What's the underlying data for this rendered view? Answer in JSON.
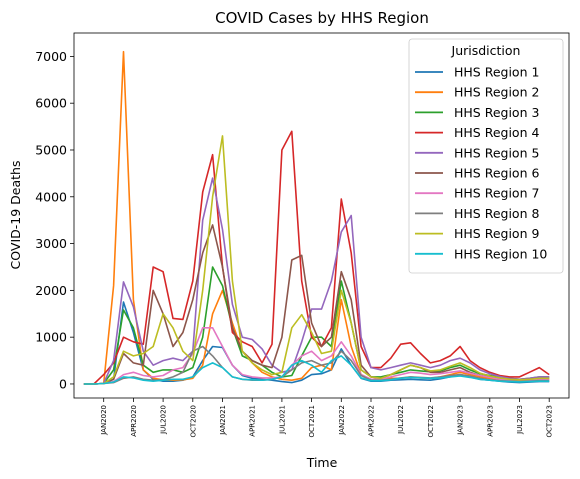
{
  "chart_data": {
    "type": "line",
    "title": "COVID Cases by HHS Region",
    "xlabel": "Time",
    "ylabel": "COVID-19 Deaths",
    "ylim": [
      -300,
      7500
    ],
    "yticks": [
      0,
      1000,
      2000,
      3000,
      4000,
      5000,
      6000,
      7000
    ],
    "x_range": [
      "2019-10",
      "2023-12"
    ],
    "x": [
      "2019-11",
      "2019-12",
      "2020-01",
      "2020-02",
      "2020-03",
      "2020-04",
      "2020-05",
      "2020-06",
      "2020-07",
      "2020-08",
      "2020-09",
      "2020-10",
      "2020-11",
      "2020-12",
      "2021-01",
      "2021-02",
      "2021-03",
      "2021-04",
      "2021-05",
      "2021-06",
      "2021-07",
      "2021-08",
      "2021-09",
      "2021-10",
      "2021-11",
      "2021-12",
      "2022-01",
      "2022-02",
      "2022-03",
      "2022-04",
      "2022-05",
      "2022-06",
      "2022-07",
      "2022-08",
      "2022-09",
      "2022-10",
      "2022-11",
      "2022-12",
      "2023-01",
      "2023-02",
      "2023-03",
      "2023-04",
      "2023-05",
      "2023-06",
      "2023-07",
      "2023-08",
      "2023-09",
      "2023-10"
    ],
    "xticks": [
      {
        "date": "2020-01",
        "label": "JAN2020"
      },
      {
        "date": "2020-04",
        "label": "APR2020"
      },
      {
        "date": "2020-07",
        "label": "JUL2020"
      },
      {
        "date": "2020-10",
        "label": "OCT2020"
      },
      {
        "date": "2021-01",
        "label": "JAN2021"
      },
      {
        "date": "2021-04",
        "label": "APR2021"
      },
      {
        "date": "2021-07",
        "label": "JUL2021"
      },
      {
        "date": "2021-10",
        "label": "OCT2021"
      },
      {
        "date": "2022-01",
        "label": "JAN2022"
      },
      {
        "date": "2022-04",
        "label": "APR2022"
      },
      {
        "date": "2022-07",
        "label": "JUL2022"
      },
      {
        "date": "2022-10",
        "label": "OCT2022"
      },
      {
        "date": "2023-01",
        "label": "JAN2023"
      },
      {
        "date": "2023-04",
        "label": "APR2023"
      },
      {
        "date": "2023-07",
        "label": "JUL2023"
      },
      {
        "date": "2023-10",
        "label": "OCT2023"
      }
    ],
    "legend": {
      "title": "Jurisdiction",
      "placement": "upper-right"
    },
    "grid": false,
    "series": [
      {
        "name": "HHS Region 1",
        "color": "#1f77b4",
        "values": [
          0,
          0,
          10,
          100,
          1750,
          1100,
          300,
          100,
          60,
          60,
          80,
          150,
          500,
          800,
          780,
          400,
          180,
          120,
          100,
          80,
          50,
          30,
          80,
          200,
          220,
          300,
          750,
          400,
          120,
          60,
          60,
          80,
          90,
          100,
          90,
          80,
          110,
          150,
          200,
          150,
          100,
          80,
          60,
          40,
          30,
          40,
          50,
          50
        ]
      },
      {
        "name": "HHS Region 2",
        "color": "#ff7f0e",
        "values": [
          0,
          0,
          10,
          2100,
          7100,
          1800,
          300,
          120,
          90,
          80,
          90,
          120,
          400,
          1500,
          2000,
          1300,
          700,
          450,
          250,
          150,
          100,
          80,
          120,
          350,
          400,
          300,
          1800,
          800,
          200,
          100,
          100,
          120,
          120,
          150,
          130,
          120,
          150,
          200,
          250,
          200,
          150,
          120,
          100,
          80,
          70,
          80,
          100,
          100
        ]
      },
      {
        "name": "HHS Region 3",
        "color": "#2ca02c",
        "values": [
          0,
          0,
          10,
          300,
          1580,
          1200,
          400,
          250,
          300,
          300,
          250,
          350,
          1000,
          2500,
          2100,
          1200,
          600,
          500,
          400,
          250,
          150,
          180,
          600,
          1000,
          1000,
          800,
          2200,
          1300,
          300,
          150,
          150,
          200,
          250,
          300,
          280,
          260,
          280,
          350,
          400,
          300,
          220,
          180,
          150,
          120,
          100,
          120,
          150,
          150
        ]
      },
      {
        "name": "HHS Region 4",
        "color": "#d62728",
        "values": [
          0,
          0,
          200,
          450,
          1000,
          900,
          850,
          2500,
          2400,
          1400,
          1380,
          2200,
          4100,
          4900,
          2500,
          1100,
          900,
          800,
          450,
          850,
          5000,
          5400,
          2200,
          1000,
          800,
          1200,
          3950,
          2800,
          800,
          350,
          350,
          550,
          850,
          880,
          650,
          450,
          500,
          600,
          800,
          500,
          350,
          250,
          180,
          150,
          150,
          250,
          350,
          200
        ]
      },
      {
        "name": "HHS Region 5",
        "color": "#9467bd",
        "values": [
          0,
          0,
          10,
          500,
          2180,
          1650,
          700,
          400,
          500,
          550,
          500,
          700,
          3500,
          4400,
          3300,
          1700,
          1000,
          950,
          750,
          400,
          250,
          300,
          900,
          1600,
          1600,
          2200,
          3250,
          3600,
          1000,
          350,
          300,
          350,
          400,
          450,
          400,
          350,
          400,
          500,
          550,
          450,
          300,
          220,
          160,
          120,
          100,
          120,
          150,
          150
        ]
      },
      {
        "name": "HHS Region 6",
        "color": "#8c564b",
        "values": [
          0,
          0,
          10,
          100,
          650,
          450,
          400,
          2000,
          1500,
          800,
          1100,
          1800,
          2800,
          3400,
          2500,
          1200,
          700,
          500,
          400,
          350,
          1000,
          2650,
          2750,
          1300,
          800,
          1000,
          2400,
          1800,
          400,
          150,
          120,
          200,
          300,
          400,
          350,
          250,
          250,
          300,
          350,
          250,
          180,
          150,
          120,
          100,
          90,
          100,
          120,
          120
        ]
      },
      {
        "name": "HHS Region 7",
        "color": "#e377c2",
        "values": [
          0,
          0,
          10,
          50,
          200,
          250,
          180,
          150,
          180,
          300,
          350,
          650,
          1200,
          1200,
          800,
          400,
          200,
          150,
          130,
          130,
          150,
          400,
          600,
          700,
          500,
          600,
          900,
          600,
          200,
          100,
          100,
          150,
          200,
          250,
          230,
          200,
          220,
          250,
          280,
          230,
          180,
          140,
          100,
          80,
          70,
          80,
          90,
          90
        ]
      },
      {
        "name": "HHS Region 8",
        "color": "#7f7f7f",
        "values": [
          0,
          0,
          10,
          30,
          120,
          150,
          100,
          80,
          90,
          150,
          250,
          700,
          800,
          600,
          350,
          150,
          100,
          80,
          80,
          100,
          150,
          300,
          450,
          500,
          400,
          450,
          700,
          500,
          180,
          80,
          80,
          100,
          130,
          150,
          140,
          130,
          150,
          180,
          200,
          170,
          120,
          90,
          70,
          60,
          50,
          60,
          70,
          70
        ]
      },
      {
        "name": "HHS Region 9",
        "color": "#bcbd22",
        "values": [
          0,
          0,
          10,
          150,
          700,
          600,
          650,
          800,
          1500,
          1200,
          700,
          500,
          2000,
          4000,
          5300,
          2200,
          700,
          450,
          300,
          200,
          250,
          1200,
          1480,
          1100,
          650,
          700,
          2000,
          1300,
          300,
          150,
          120,
          200,
          300,
          400,
          350,
          280,
          300,
          380,
          450,
          350,
          230,
          170,
          130,
          100,
          90,
          100,
          120,
          120
        ]
      },
      {
        "name": "HHS Region 10",
        "color": "#17becf",
        "values": [
          0,
          0,
          10,
          40,
          150,
          130,
          80,
          60,
          80,
          100,
          100,
          150,
          350,
          450,
          350,
          150,
          100,
          90,
          80,
          100,
          150,
          400,
          500,
          400,
          250,
          500,
          600,
          400,
          130,
          70,
          70,
          90,
          120,
          140,
          130,
          120,
          130,
          150,
          170,
          140,
          100,
          80,
          60,
          50,
          45,
          50,
          60,
          60
        ]
      }
    ]
  }
}
